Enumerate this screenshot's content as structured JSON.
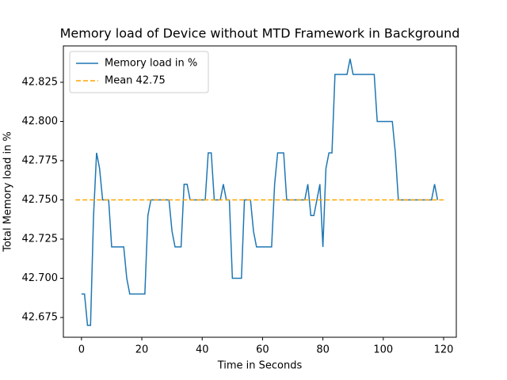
{
  "chart_data": {
    "type": "line",
    "title": "Memory load of Device without MTD Framework in Background",
    "xlabel": "Time in Seconds",
    "ylabel": "Total Memory load in %",
    "xlim": [
      -6,
      124.2
    ],
    "ylim": [
      42.6624,
      42.8482
    ],
    "xticks": [
      0,
      20,
      40,
      60,
      80,
      100,
      120
    ],
    "yticks": [
      42.675,
      {
        "value": 42.7,
        "label": "42.700"
      },
      42.725,
      {
        "value": 42.75,
        "label": "42.750"
      },
      42.775,
      {
        "value": 42.8,
        "label": "42.800"
      },
      42.825
    ],
    "legend": "upper left",
    "series": [
      {
        "name": "Memory load in %",
        "color": "#1f77b4",
        "linestyle": "solid",
        "x": [
          0,
          1,
          2,
          3,
          4,
          5,
          6,
          7,
          8,
          9,
          10,
          11,
          12,
          13,
          14,
          15,
          16,
          17,
          18,
          19,
          20,
          21,
          22,
          23,
          24,
          25,
          26,
          27,
          28,
          29,
          30,
          31,
          32,
          33,
          34,
          35,
          36,
          37,
          38,
          39,
          40,
          41,
          42,
          43,
          44,
          45,
          46,
          47,
          48,
          49,
          50,
          51,
          52,
          53,
          54,
          55,
          56,
          57,
          58,
          59,
          60,
          61,
          62,
          63,
          64,
          65,
          66,
          67,
          68,
          69,
          70,
          71,
          72,
          73,
          74,
          75,
          76,
          77,
          78,
          79,
          80,
          81,
          82,
          83,
          84,
          85,
          86,
          87,
          88,
          89,
          90,
          91,
          92,
          93,
          94,
          95,
          96,
          97,
          98,
          99,
          100,
          101,
          102,
          103,
          104,
          105,
          106,
          107,
          108,
          109,
          110,
          111,
          112,
          113,
          114,
          115,
          116,
          117,
          118
        ],
        "values": [
          42.69,
          42.69,
          42.67,
          42.67,
          42.74,
          42.78,
          42.77,
          42.75,
          42.75,
          42.75,
          42.72,
          42.72,
          42.72,
          42.72,
          42.72,
          42.7,
          42.69,
          42.69,
          42.69,
          42.69,
          42.69,
          42.69,
          42.74,
          42.75,
          42.75,
          42.75,
          42.75,
          42.75,
          42.75,
          42.75,
          42.73,
          42.72,
          42.72,
          42.72,
          42.76,
          42.76,
          42.75,
          42.75,
          42.75,
          42.75,
          42.75,
          42.75,
          42.78,
          42.78,
          42.75,
          42.75,
          42.75,
          42.76,
          42.75,
          42.75,
          42.7,
          42.7,
          42.7,
          42.7,
          42.75,
          42.75,
          42.75,
          42.73,
          42.72,
          42.72,
          42.72,
          42.72,
          42.72,
          42.72,
          42.76,
          42.78,
          42.78,
          42.78,
          42.75,
          42.75,
          42.75,
          42.75,
          42.75,
          42.75,
          42.75,
          42.76,
          42.74,
          42.74,
          42.75,
          42.76,
          42.72,
          42.77,
          42.78,
          42.78,
          42.83,
          42.83,
          42.83,
          42.83,
          42.83,
          42.84,
          42.83,
          42.83,
          42.83,
          42.83,
          42.83,
          42.83,
          42.83,
          42.83,
          42.8,
          42.8,
          42.8,
          42.8,
          42.8,
          42.8,
          42.78,
          42.75,
          42.75,
          42.75,
          42.75,
          42.75,
          42.75,
          42.75,
          42.75,
          42.75,
          42.75,
          42.75,
          42.75,
          42.76,
          42.75
        ]
      },
      {
        "name": "Mean 42.75",
        "color": "#ffa500",
        "linestyle": "dashed",
        "x": [
          -2,
          120
        ],
        "values": [
          42.75,
          42.75
        ]
      }
    ]
  }
}
